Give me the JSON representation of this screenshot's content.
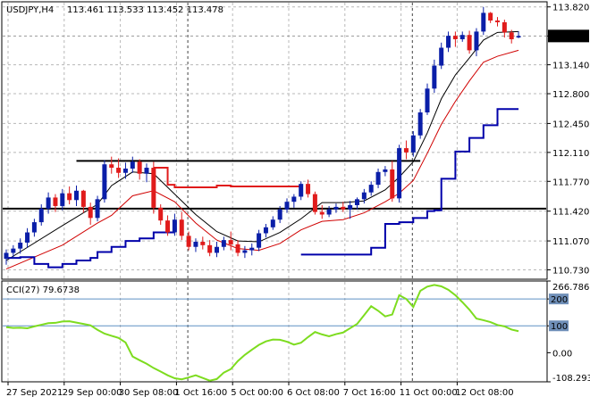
{
  "header": {
    "symbol": "USDJPY,H4",
    "ohlc": "113.461 113.533 113.452 113.478"
  },
  "cci_header": "CCI(27) 79.6738",
  "colors": {
    "bull": "#0a1ea8",
    "bear": "#e01b1b",
    "ma_blue": "#0000aa",
    "ma_black": "#000000",
    "ma_red": "#d00000",
    "cci": "#7ddc1f",
    "grid": "#b8b8b8",
    "price_tag_bg": "#000000",
    "price_tag_text": "#ffffff"
  },
  "chart_data": [
    {
      "type": "candlestick",
      "title": "USDJPY,H4",
      "ylim": [
        110.62,
        113.88
      ],
      "y_ticks": [
        "113.820",
        "113.478",
        "113.140",
        "112.800",
        "112.450",
        "112.110",
        "111.770",
        "111.420",
        "111.070",
        "110.730"
      ],
      "current_price": 113.478,
      "x_labels": [
        "27 Sep 2021",
        "29 Sep 00:00",
        "30 Sep 08:00",
        "1 Oct 16:00",
        "5 Oct 00:00",
        "6 Oct 08:00",
        "7 Oct 16:00",
        "11 Oct 00:00",
        "12 Oct 08:00"
      ],
      "candles": [
        [
          110.86,
          110.97,
          110.79,
          110.93
        ],
        [
          110.93,
          111.02,
          110.86,
          110.98
        ],
        [
          110.98,
          111.1,
          110.92,
          111.05
        ],
        [
          111.05,
          111.22,
          110.99,
          111.17
        ],
        [
          111.17,
          111.33,
          111.12,
          111.29
        ],
        [
          111.29,
          111.5,
          111.25,
          111.45
        ],
        [
          111.45,
          111.64,
          111.39,
          111.58
        ],
        [
          111.58,
          111.62,
          111.41,
          111.48
        ],
        [
          111.48,
          111.68,
          111.43,
          111.63
        ],
        [
          111.63,
          111.71,
          111.5,
          111.55
        ],
        [
          111.55,
          111.72,
          111.48,
          111.66
        ],
        [
          111.66,
          111.67,
          111.4,
          111.47
        ],
        [
          111.47,
          111.52,
          111.26,
          111.34
        ],
        [
          111.34,
          111.6,
          111.3,
          111.56
        ],
        [
          111.56,
          112.02,
          111.52,
          111.97
        ],
        [
          111.97,
          112.06,
          111.86,
          111.93
        ],
        [
          111.93,
          112.04,
          111.81,
          111.87
        ],
        [
          111.87,
          111.99,
          111.8,
          111.92
        ],
        [
          111.92,
          112.06,
          111.87,
          112.0
        ],
        [
          112.0,
          112.03,
          111.79,
          111.86
        ],
        [
          111.86,
          111.98,
          111.76,
          111.93
        ],
        [
          111.93,
          112.0,
          111.39,
          111.46
        ],
        [
          111.46,
          111.5,
          111.26,
          111.31
        ],
        [
          111.31,
          111.37,
          111.13,
          111.17
        ],
        [
          111.17,
          111.39,
          111.13,
          111.32
        ],
        [
          111.32,
          111.41,
          111.08,
          111.13
        ],
        [
          111.13,
          111.18,
          110.96,
          111.0
        ],
        [
          111.0,
          111.1,
          110.94,
          111.06
        ],
        [
          111.06,
          111.12,
          110.97,
          111.02
        ],
        [
          111.02,
          111.08,
          110.89,
          110.93
        ],
        [
          110.93,
          111.06,
          110.88,
          111.0
        ],
        [
          111.0,
          111.12,
          110.96,
          111.08
        ],
        [
          111.08,
          111.18,
          110.96,
          111.03
        ],
        [
          111.03,
          111.08,
          110.89,
          110.93
        ],
        [
          110.93,
          111.01,
          110.87,
          110.96
        ],
        [
          110.96,
          111.04,
          110.9,
          110.99
        ],
        [
          110.99,
          111.2,
          110.95,
          111.16
        ],
        [
          111.16,
          111.27,
          111.11,
          111.23
        ],
        [
          111.23,
          111.36,
          111.2,
          111.32
        ],
        [
          111.32,
          111.48,
          111.28,
          111.44
        ],
        [
          111.44,
          111.57,
          111.4,
          111.53
        ],
        [
          111.53,
          111.62,
          111.46,
          111.59
        ],
        [
          111.59,
          111.77,
          111.55,
          111.74
        ],
        [
          111.74,
          111.79,
          111.58,
          111.62
        ],
        [
          111.62,
          111.65,
          111.38,
          111.41
        ],
        [
          111.41,
          111.49,
          111.33,
          111.38
        ],
        [
          111.38,
          111.48,
          111.35,
          111.44
        ],
        [
          111.44,
          111.51,
          111.4,
          111.47
        ],
        [
          111.47,
          111.53,
          111.41,
          111.44
        ],
        [
          111.44,
          111.54,
          111.33,
          111.49
        ],
        [
          111.49,
          111.58,
          111.44,
          111.56
        ],
        [
          111.56,
          111.68,
          111.51,
          111.64
        ],
        [
          111.64,
          111.77,
          111.6,
          111.73
        ],
        [
          111.73,
          111.92,
          111.69,
          111.88
        ],
        [
          111.88,
          111.95,
          111.83,
          111.91
        ],
        [
          111.91,
          112.01,
          111.53,
          111.57
        ],
        [
          111.57,
          112.2,
          111.52,
          112.16
        ],
        [
          112.16,
          112.25,
          112.03,
          112.11
        ],
        [
          112.11,
          112.36,
          112.06,
          112.31
        ],
        [
          112.31,
          112.62,
          112.27,
          112.58
        ],
        [
          112.58,
          112.92,
          112.55,
          112.86
        ],
        [
          112.86,
          113.2,
          112.81,
          113.13
        ],
        [
          113.13,
          113.4,
          113.09,
          113.34
        ],
        [
          113.34,
          113.53,
          113.29,
          113.48
        ],
        [
          113.48,
          113.53,
          113.35,
          113.44
        ],
        [
          113.44,
          113.53,
          113.41,
          113.49
        ],
        [
          113.49,
          113.54,
          113.27,
          113.31
        ],
        [
          113.31,
          113.57,
          113.24,
          113.53
        ],
        [
          113.53,
          113.82,
          113.49,
          113.75
        ],
        [
          113.75,
          113.76,
          113.63,
          113.66
        ],
        [
          113.66,
          113.7,
          113.59,
          113.64
        ],
        [
          113.64,
          113.67,
          113.46,
          113.52
        ],
        [
          113.52,
          113.55,
          113.39,
          113.44
        ],
        [
          113.461,
          113.533,
          113.452,
          113.478
        ]
      ],
      "indicators": {
        "ma_black": [
          [
            0,
            110.84
          ],
          [
            8,
            111.25
          ],
          [
            13,
            111.5
          ],
          [
            15,
            111.72
          ],
          [
            18,
            111.88
          ],
          [
            21,
            111.86
          ],
          [
            24,
            111.62
          ],
          [
            27,
            111.38
          ],
          [
            30,
            111.18
          ],
          [
            33,
            111.07
          ],
          [
            36,
            111.06
          ],
          [
            39,
            111.17
          ],
          [
            42,
            111.33
          ],
          [
            45,
            111.52
          ],
          [
            48,
            111.52
          ],
          [
            51,
            111.54
          ],
          [
            54,
            111.67
          ],
          [
            56,
            111.82
          ],
          [
            58,
            112.0
          ],
          [
            60,
            112.34
          ],
          [
            62,
            112.74
          ],
          [
            64,
            113.02
          ],
          [
            66,
            113.22
          ],
          [
            68,
            113.43
          ],
          [
            70,
            113.52
          ],
          [
            73,
            113.53
          ]
        ],
        "ma_red": [
          [
            0,
            110.74
          ],
          [
            8,
            111.02
          ],
          [
            13,
            111.28
          ],
          [
            15,
            111.37
          ],
          [
            18,
            111.6
          ],
          [
            21,
            111.66
          ],
          [
            24,
            111.53
          ],
          [
            27,
            111.28
          ],
          [
            30,
            111.08
          ],
          [
            33,
            110.98
          ],
          [
            36,
            110.96
          ],
          [
            39,
            111.04
          ],
          [
            42,
            111.2
          ],
          [
            45,
            111.3
          ],
          [
            48,
            111.32
          ],
          [
            51,
            111.4
          ],
          [
            54,
            111.53
          ],
          [
            56,
            111.63
          ],
          [
            58,
            111.78
          ],
          [
            60,
            112.1
          ],
          [
            62,
            112.44
          ],
          [
            64,
            112.71
          ],
          [
            66,
            112.95
          ],
          [
            68,
            113.17
          ],
          [
            70,
            113.24
          ],
          [
            73,
            113.31
          ]
        ],
        "step_red": [
          [
            21,
            111.93
          ],
          [
            23,
            111.73
          ],
          [
            24,
            111.7
          ],
          [
            27,
            111.7
          ],
          [
            30,
            111.72
          ],
          [
            32,
            111.71
          ],
          [
            42,
            111.71
          ]
        ],
        "step_blue_1": [
          [
            0,
            110.87
          ],
          [
            2,
            110.88
          ],
          [
            4,
            110.8
          ],
          [
            6,
            110.76
          ],
          [
            8,
            110.8
          ],
          [
            10,
            110.84
          ],
          [
            12,
            110.87
          ],
          [
            13,
            110.94
          ],
          [
            15,
            111.0
          ],
          [
            17,
            111.07
          ],
          [
            19,
            111.1
          ],
          [
            21,
            111.17
          ],
          [
            24,
            111.17
          ]
        ],
        "step_blue_2": [
          [
            42,
            110.91
          ],
          [
            50,
            110.91
          ],
          [
            52,
            110.99
          ],
          [
            54,
            111.27
          ],
          [
            56,
            111.29
          ],
          [
            58,
            111.34
          ],
          [
            60,
            111.42
          ],
          [
            61,
            111.43
          ],
          [
            62,
            111.8
          ],
          [
            64,
            112.12
          ],
          [
            66,
            112.28
          ],
          [
            68,
            112.43
          ],
          [
            70,
            112.62
          ],
          [
            73,
            112.62
          ]
        ]
      },
      "hlines": [
        {
          "value": 112.01,
          "from_index": 10,
          "to_index": 59
        },
        {
          "value": 111.45,
          "from_index": 0,
          "to_index": 73
        }
      ]
    },
    {
      "type": "line",
      "title": "CCI(27)",
      "current": 79.6738,
      "ylim": [
        -108.2932,
        266.7866
      ],
      "y_ticks": [
        "266.7866",
        "200",
        "100",
        "0.00",
        "-108.2932"
      ],
      "levels": [
        200,
        100
      ],
      "series": [
        {
          "values": [
            95,
            92,
            93,
            91,
            98,
            104,
            110,
            111,
            116,
            117,
            112,
            107,
            102,
            85,
            71,
            63,
            55,
            38,
            -14,
            -28,
            -41,
            -57,
            -70,
            -84,
            -95,
            -99,
            -92,
            -84,
            -94,
            -104,
            -98,
            -74,
            -61,
            -31,
            -8,
            11,
            29,
            42,
            49,
            48,
            41,
            30,
            37,
            58,
            77,
            68,
            61,
            69,
            75,
            91,
            107,
            140,
            173,
            156,
            135,
            142,
            214,
            200,
            170,
            230,
            246,
            252,
            247,
            234,
            214,
            188,
            160,
            127,
            121,
            114,
            103,
            98,
            86,
            80
          ]
        }
      ]
    }
  ]
}
